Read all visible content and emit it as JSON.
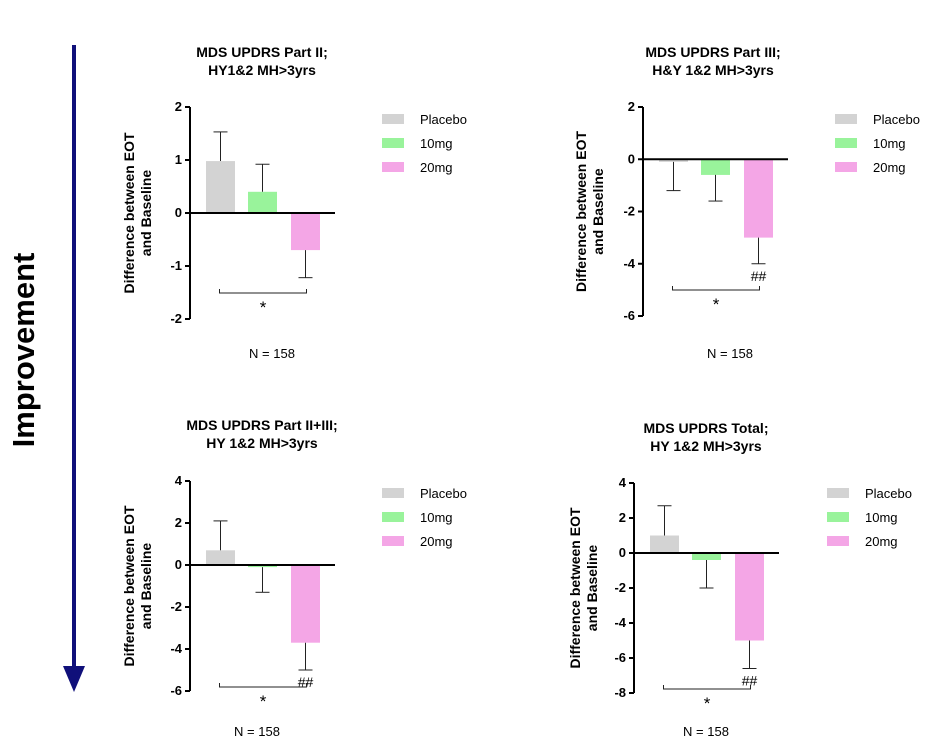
{
  "colors": {
    "arrow": "#10107a",
    "placebo": "#d3d3d3",
    "mg10": "#99f39b",
    "mg20": "#f4a6e6",
    "axis": "#000000"
  },
  "improvement_label": "Improvement",
  "chart_data": [
    {
      "type": "bar",
      "title_lines": [
        "MDS UPDRS Part II;",
        "HY1&2 MH>3yrs"
      ],
      "ylabel_lines": [
        "Difference between EOT",
        "and Baseline"
      ],
      "ylim": [
        -2,
        2
      ],
      "yticks": [
        2,
        1,
        0,
        -1,
        -2
      ],
      "ytick_labels": [
        "2",
        "1",
        "0",
        "-1",
        "-2"
      ],
      "categories": [
        "Placebo",
        "10mg",
        "20mg"
      ],
      "values": [
        0.98,
        0.4,
        -0.7
      ],
      "errors": [
        0.55,
        0.52,
        0.52
      ],
      "hash_labels": [
        "",
        "",
        ""
      ],
      "significance": "*",
      "legend": [
        "Placebo",
        "10mg",
        "20mg"
      ],
      "n_label": "N = 158"
    },
    {
      "type": "bar",
      "title_lines": [
        "MDS UPDRS Part III;",
        "H&Y 1&2 MH>3yrs"
      ],
      "ylabel_lines": [
        "Difference between EOT",
        "and Baseline"
      ],
      "ylim": [
        -6,
        2
      ],
      "yticks": [
        2,
        0,
        -2,
        -4,
        -6
      ],
      "ytick_labels": [
        "2",
        "0",
        "-2",
        "-4",
        "-6"
      ],
      "categories": [
        "Placebo",
        "10mg",
        "20mg"
      ],
      "values": [
        -0.1,
        -0.6,
        -3.0
      ],
      "errors": [
        1.1,
        1.0,
        1.0
      ],
      "hash_labels": [
        "",
        "",
        "##"
      ],
      "significance": "*",
      "legend": [
        "Placebo",
        "10mg",
        "20mg"
      ],
      "n_label": "N = 158"
    },
    {
      "type": "bar",
      "title_lines": [
        "MDS UPDRS Part II+III;",
        "HY 1&2 MH>3yrs"
      ],
      "ylabel_lines": [
        "Difference between EOT",
        "and Baseline"
      ],
      "ylim": [
        -6,
        4
      ],
      "yticks": [
        4,
        2,
        0,
        -2,
        -4,
        -6
      ],
      "ytick_labels": [
        "4",
        "2",
        "0",
        "-2",
        "-4",
        "-6"
      ],
      "categories": [
        "Placebo",
        "10mg",
        "20mg"
      ],
      "values": [
        0.7,
        -0.1,
        -3.7
      ],
      "errors": [
        1.4,
        1.2,
        1.3
      ],
      "hash_labels": [
        "",
        "",
        "##"
      ],
      "significance": "*",
      "legend": [
        "Placebo",
        "10mg",
        "20mg"
      ],
      "n_label": "N = 158"
    },
    {
      "type": "bar",
      "title_lines": [
        "MDS UPDRS Total;",
        "HY 1&2 MH>3yrs"
      ],
      "ylabel_lines": [
        "Difference between EOT",
        "and Baseline"
      ],
      "ylim": [
        -8,
        4
      ],
      "yticks": [
        4,
        2,
        0,
        -2,
        -4,
        -6,
        -8
      ],
      "ytick_labels": [
        "4",
        "2",
        "0",
        "-2",
        "-4",
        "-6",
        "-8"
      ],
      "categories": [
        "Placebo",
        "10mg",
        "20mg"
      ],
      "values": [
        1.0,
        -0.4,
        -5.0
      ],
      "errors": [
        1.7,
        1.6,
        1.6
      ],
      "hash_labels": [
        "",
        "",
        "##"
      ],
      "significance": "*",
      "legend": [
        "Placebo",
        "10mg",
        "20mg"
      ],
      "n_label": "N = 158"
    }
  ]
}
